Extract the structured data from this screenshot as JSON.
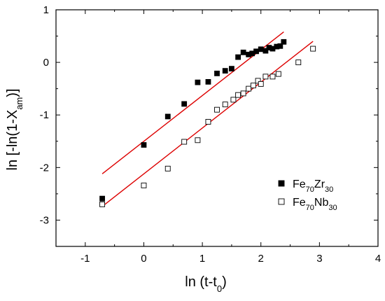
{
  "chart_data": {
    "type": "scatter",
    "xlim": [
      -1.5,
      4
    ],
    "ylim": [
      -3.5,
      1
    ],
    "x_ticks": [
      -1,
      0,
      1,
      2,
      3,
      4
    ],
    "y_ticks": [
      -3,
      -2,
      -1,
      0,
      1
    ],
    "x_tick_labels": [
      "-1",
      "0",
      "1",
      "2",
      "3",
      "4"
    ],
    "y_tick_labels": [
      "-3",
      "-2",
      "-1",
      "0",
      "1"
    ],
    "xlabel": {
      "main": "ln (t-t",
      "sub": "0",
      "tail": ")"
    },
    "ylabel": {
      "main": "ln [-ln(1-X",
      "sub": "am",
      "tail": ")]"
    },
    "grid": false,
    "legend_position": "bottom-right",
    "fit_line_color": "#dd0000",
    "series": [
      {
        "name": "Fe70Zr30",
        "legend_parts": [
          "Fe",
          "70",
          "Zr",
          "30"
        ],
        "marker": "filled-square",
        "color": "#000000",
        "points": [
          [
            -0.71,
            -2.59
          ],
          [
            0.0,
            -1.57
          ],
          [
            0.41,
            -1.03
          ],
          [
            0.69,
            -0.79
          ],
          [
            0.92,
            -0.38
          ],
          [
            1.1,
            -0.37
          ],
          [
            1.25,
            -0.21
          ],
          [
            1.39,
            -0.16
          ],
          [
            1.5,
            -0.12
          ],
          [
            1.61,
            0.1
          ],
          [
            1.7,
            0.19
          ],
          [
            1.79,
            0.15
          ],
          [
            1.85,
            0.17
          ],
          [
            1.92,
            0.21
          ],
          [
            2.0,
            0.25
          ],
          [
            2.08,
            0.22
          ],
          [
            2.14,
            0.28
          ],
          [
            2.2,
            0.26
          ],
          [
            2.27,
            0.3
          ],
          [
            2.33,
            0.31
          ],
          [
            2.39,
            0.39
          ]
        ],
        "fit": [
          [
            -0.71,
            -2.12
          ],
          [
            2.39,
            0.58
          ]
        ]
      },
      {
        "name": "Fe70Nb30",
        "legend_parts": [
          "Fe",
          "70",
          "Nb",
          "30"
        ],
        "marker": "open-square",
        "color": "#000000",
        "points": [
          [
            -0.71,
            -2.7
          ],
          [
            0.0,
            -2.34
          ],
          [
            0.41,
            -2.02
          ],
          [
            0.69,
            -1.51
          ],
          [
            0.92,
            -1.48
          ],
          [
            1.1,
            -1.13
          ],
          [
            1.25,
            -0.9
          ],
          [
            1.39,
            -0.8
          ],
          [
            1.53,
            -0.71
          ],
          [
            1.61,
            -0.62
          ],
          [
            1.7,
            -0.59
          ],
          [
            1.79,
            -0.5
          ],
          [
            1.87,
            -0.44
          ],
          [
            1.95,
            -0.35
          ],
          [
            2.0,
            -0.41
          ],
          [
            2.08,
            -0.27
          ],
          [
            2.2,
            -0.27
          ],
          [
            2.3,
            -0.22
          ],
          [
            2.64,
            0.0
          ],
          [
            2.89,
            0.26
          ]
        ],
        "fit": [
          [
            -0.71,
            -2.74
          ],
          [
            2.89,
            0.4
          ]
        ]
      }
    ]
  }
}
